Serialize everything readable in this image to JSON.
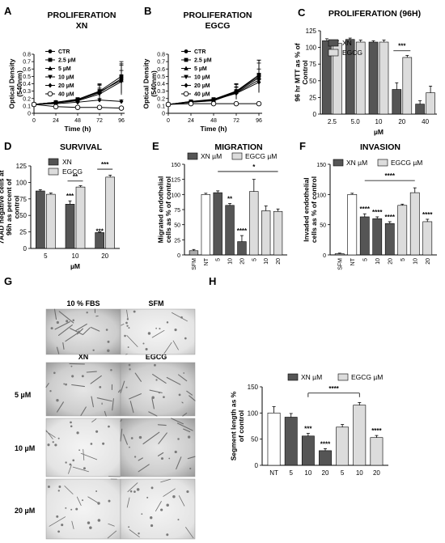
{
  "panel_letters": {
    "A": "A",
    "B": "B",
    "C": "C",
    "D": "D",
    "E": "E",
    "F": "F",
    "G": "G",
    "H": "H"
  },
  "colors": {
    "dark": "#555555",
    "light": "#dcdcdc",
    "ref": "#ffffff",
    "sfm": "#aaaaaa"
  },
  "micrographs": {
    "headers": [
      "10 % FBS",
      "SFM",
      "XN",
      "EGCG"
    ],
    "row_labels": [
      "5 µM",
      "10 µM",
      "20 µM"
    ]
  },
  "chart_data": [
    {
      "id": "A",
      "type": "line",
      "title": "PROLIFERATION",
      "subtitle": "XN",
      "xlabel": "Time (h)",
      "ylabel": "Optical Density (540nm)",
      "x": [
        0,
        24,
        48,
        72,
        96
      ],
      "ylim": [
        0,
        0.8
      ],
      "xticks": [
        "0",
        "24",
        "48",
        "72",
        "96"
      ],
      "yticks": [
        "0",
        "0.1",
        "0.2",
        "0.3",
        "0.4",
        "0.5",
        "0.6",
        "0.7",
        "0.8"
      ],
      "series": [
        {
          "name": "CTR",
          "marker": "circle",
          "values": [
            0.12,
            0.15,
            0.18,
            0.28,
            0.47
          ],
          "err": [
            0,
            0.01,
            0.02,
            0.1,
            0.2
          ]
        },
        {
          "name": "2.5 µM",
          "marker": "square",
          "values": [
            0.12,
            0.15,
            0.19,
            0.3,
            0.5
          ],
          "err": [
            0,
            0.01,
            0.02,
            0.1,
            0.2
          ]
        },
        {
          "name": "5 µM",
          "marker": "triangle",
          "values": [
            0.12,
            0.15,
            0.18,
            0.29,
            0.45
          ],
          "err": [
            0,
            0.01,
            0.02,
            0.1,
            0.2
          ]
        },
        {
          "name": "10 µM",
          "marker": "tri-down",
          "values": [
            0.12,
            0.14,
            0.17,
            0.26,
            0.43
          ],
          "err": [
            0,
            0.01,
            0.02,
            0.08,
            0.15
          ]
        },
        {
          "name": "20 µM",
          "marker": "diamond",
          "values": [
            0.12,
            0.13,
            0.15,
            0.18,
            0.16
          ],
          "err": [
            0,
            0.01,
            0.01,
            0.02,
            0.02
          ]
        },
        {
          "name": "40 µM",
          "marker": "open-circle",
          "values": [
            0.12,
            0.09,
            0.08,
            0.08,
            0.07
          ],
          "err": [
            0,
            0.01,
            0.01,
            0.01,
            0.01
          ]
        }
      ]
    },
    {
      "id": "B",
      "type": "line",
      "title": "PROLIFERATION",
      "subtitle": "EGCG",
      "xlabel": "Time (h)",
      "ylabel": "Optical Density (540nm)",
      "x": [
        0,
        24,
        48,
        72,
        96
      ],
      "ylim": [
        0,
        0.8
      ],
      "xticks": [
        "0",
        "24",
        "48",
        "72",
        "96"
      ],
      "yticks": [
        "0",
        "0.1",
        "0.2",
        "0.3",
        "0.4",
        "0.5",
        "0.6",
        "0.7",
        "0.8"
      ],
      "series": [
        {
          "name": "CTR",
          "marker": "circle",
          "values": [
            0.12,
            0.16,
            0.18,
            0.3,
            0.5
          ],
          "err": [
            0,
            0.01,
            0.02,
            0.1,
            0.22
          ]
        },
        {
          "name": "2.5 µM",
          "marker": "square",
          "values": [
            0.12,
            0.16,
            0.19,
            0.3,
            0.52
          ],
          "err": [
            0,
            0.01,
            0.02,
            0.1,
            0.2
          ]
        },
        {
          "name": "5 µM",
          "marker": "triangle",
          "values": [
            0.12,
            0.15,
            0.18,
            0.29,
            0.48
          ],
          "err": [
            0,
            0.01,
            0.02,
            0.1,
            0.2
          ]
        },
        {
          "name": "10 µM",
          "marker": "tri-down",
          "values": [
            0.12,
            0.15,
            0.17,
            0.28,
            0.45
          ],
          "err": [
            0,
            0.01,
            0.02,
            0.08,
            0.15
          ]
        },
        {
          "name": "20 µM",
          "marker": "diamond",
          "values": [
            0.12,
            0.15,
            0.18,
            0.27,
            0.42
          ],
          "err": [
            0,
            0.01,
            0.02,
            0.08,
            0.12
          ]
        },
        {
          "name": "40 µM",
          "marker": "open-circle",
          "values": [
            0.12,
            0.13,
            0.13,
            0.13,
            0.13
          ],
          "err": [
            0,
            0.01,
            0.01,
            0.01,
            0.01
          ]
        }
      ]
    },
    {
      "id": "C",
      "type": "bar",
      "title": "PROLIFERATION (96H)",
      "xlabel": "µM",
      "ylabel": "96 hr MTT as % of Control",
      "categories": [
        "2.5",
        "5.0",
        "10",
        "20",
        "40"
      ],
      "ylim": [
        0,
        125
      ],
      "yticks": [
        "0",
        "25",
        "50",
        "75",
        "100",
        "125"
      ],
      "series": [
        {
          "name": "XN",
          "values": [
            110,
            112,
            108,
            37,
            15
          ],
          "err": [
            3,
            2,
            2,
            10,
            5
          ]
        },
        {
          "name": "EGCG",
          "values": [
            106,
            108,
            108,
            85,
            32
          ],
          "err": [
            4,
            3,
            3,
            3,
            10
          ]
        }
      ],
      "annotations": [
        {
          "category": "20",
          "text": "***"
        }
      ]
    },
    {
      "id": "D",
      "type": "bar",
      "title": "SURVIVAL",
      "xlabel": "µM",
      "ylabel": "7AAD negative cells at 96h as percent of control",
      "categories": [
        "5",
        "10",
        "20"
      ],
      "ylim": [
        0,
        125
      ],
      "yticks": [
        "0",
        "25",
        "50",
        "75",
        "100",
        "125"
      ],
      "series": [
        {
          "name": "XN",
          "values": [
            87,
            67,
            24
          ],
          "err": [
            2,
            5,
            1
          ]
        },
        {
          "name": "EGCG",
          "values": [
            82,
            93,
            108
          ],
          "err": [
            2,
            2,
            3
          ]
        }
      ],
      "annotations": [
        {
          "category": "10",
          "text": "***"
        },
        {
          "category": "10",
          "text": "**"
        },
        {
          "category": "20",
          "text": "***"
        },
        {
          "category": "20",
          "text": "***"
        }
      ]
    },
    {
      "id": "E",
      "type": "bar",
      "title": "MIGRATION",
      "ylabel": "Migrated endothelial cells as % of control",
      "legend": [
        "XN µM",
        "EGCG µM"
      ],
      "categories": [
        "SFM",
        "NT",
        "5",
        "10",
        "20",
        "5",
        "10",
        "20"
      ],
      "groups": [
        "sfm",
        "ref",
        "dark",
        "dark",
        "dark",
        "light",
        "light",
        "light"
      ],
      "values": [
        7,
        100,
        103,
        82,
        22,
        105,
        73,
        72
      ],
      "err": [
        2,
        2,
        3,
        3,
        10,
        20,
        8,
        4
      ],
      "ylim": [
        0,
        150
      ],
      "yticks": [
        "0",
        "25",
        "50",
        "75",
        "100",
        "125",
        "150"
      ],
      "annotations": [
        "",
        "",
        "",
        "**",
        "****",
        "",
        "",
        ""
      ],
      "bracket": "*"
    },
    {
      "id": "F",
      "type": "bar",
      "title": "INVASION",
      "ylabel": "Invaded endothelial cells as % of control",
      "legend": [
        "XN µM",
        "EGCG µM"
      ],
      "categories": [
        "SFM",
        "NT",
        "5",
        "10",
        "20",
        "5",
        "10",
        "20"
      ],
      "groups": [
        "sfm",
        "ref",
        "dark",
        "dark",
        "dark",
        "light",
        "light",
        "light"
      ],
      "values": [
        2,
        100,
        63,
        60,
        52,
        82,
        103,
        55
      ],
      "err": [
        1,
        2,
        5,
        3,
        3,
        2,
        8,
        4
      ],
      "ylim": [
        0,
        150
      ],
      "yticks": [
        "0",
        "50",
        "100",
        "150"
      ],
      "annotations": [
        "",
        "",
        "****",
        "****",
        "****",
        "",
        "",
        "****"
      ],
      "bracket": "****"
    },
    {
      "id": "H",
      "type": "bar",
      "ylabel": "Segment length as % of control",
      "legend": [
        "XN µM",
        "EGCG µM"
      ],
      "categories": [
        "NT",
        "5",
        "10",
        "20",
        "5",
        "10",
        "20"
      ],
      "groups": [
        "ref",
        "dark",
        "dark",
        "dark",
        "light",
        "light",
        "light"
      ],
      "values": [
        100,
        92,
        56,
        28,
        73,
        115,
        53
      ],
      "err": [
        12,
        7,
        5,
        4,
        5,
        5,
        4
      ],
      "ylim": [
        0,
        150
      ],
      "yticks": [
        "0",
        "50",
        "100",
        "150"
      ],
      "annotations": [
        "",
        "",
        "***",
        "****",
        "",
        "",
        "****"
      ],
      "bracket": "****"
    }
  ]
}
